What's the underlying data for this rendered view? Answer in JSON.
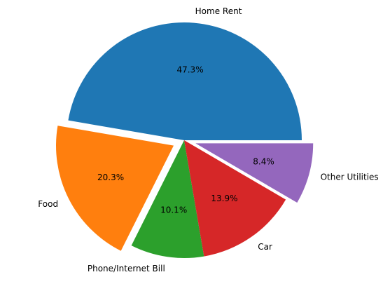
{
  "chart_data": {
    "type": "pie",
    "title": "",
    "labels": [
      "Home Rent",
      "Food",
      "Phone/Internet Bill",
      "Car",
      "Other Utilities"
    ],
    "values": [
      47.3,
      20.3,
      10.1,
      13.9,
      8.4
    ],
    "value_labels": [
      "47.3%",
      "20.3%",
      "10.1%",
      "13.9%",
      "8.4%"
    ],
    "colors": [
      "#1f77b4",
      "#ff7f0e",
      "#2ca02c",
      "#d62728",
      "#9467bd"
    ],
    "exploded": [
      false,
      true,
      false,
      false,
      true
    ],
    "start_angle_deg": 0,
    "direction": "counterclockwise",
    "legend": "none"
  }
}
